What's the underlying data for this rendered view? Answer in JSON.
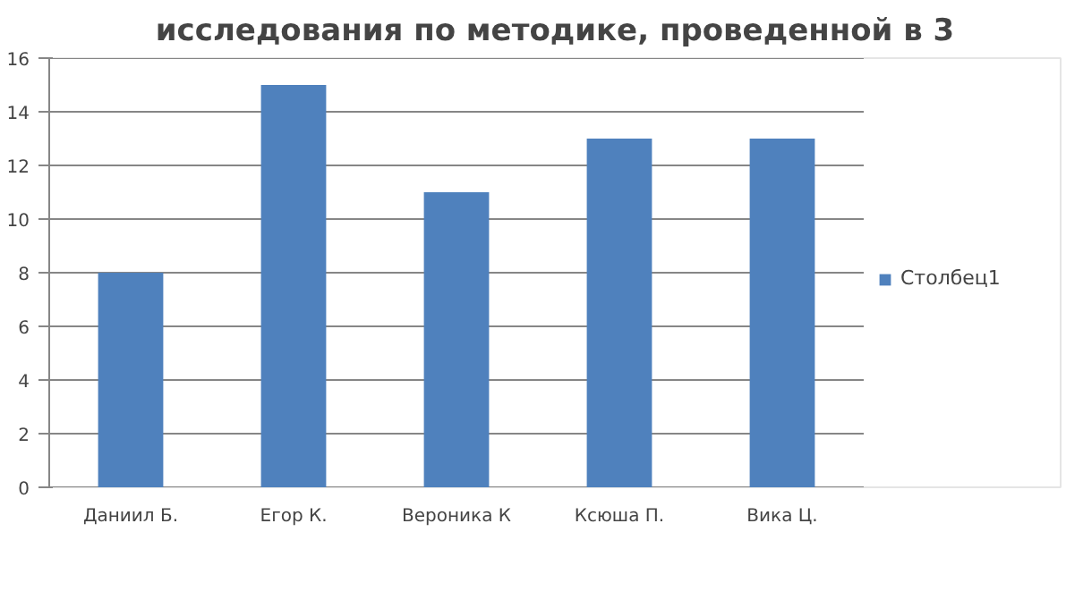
{
  "chart_data": {
    "type": "bar",
    "title": "исследования по методике, проведенной в 3",
    "categories": [
      "Даниил Б.",
      "Егор К.",
      "Вероника К",
      "Ксюша П.",
      "Вика Ц."
    ],
    "series": [
      {
        "name": "Столбец1",
        "color": "#4f81bd",
        "values": [
          8,
          15,
          11,
          13,
          13
        ]
      }
    ],
    "ylim": [
      0,
      16
    ],
    "yticks": [
      0,
      2,
      4,
      6,
      8,
      10,
      12,
      14,
      16
    ],
    "grid": "y",
    "legend": "right"
  }
}
